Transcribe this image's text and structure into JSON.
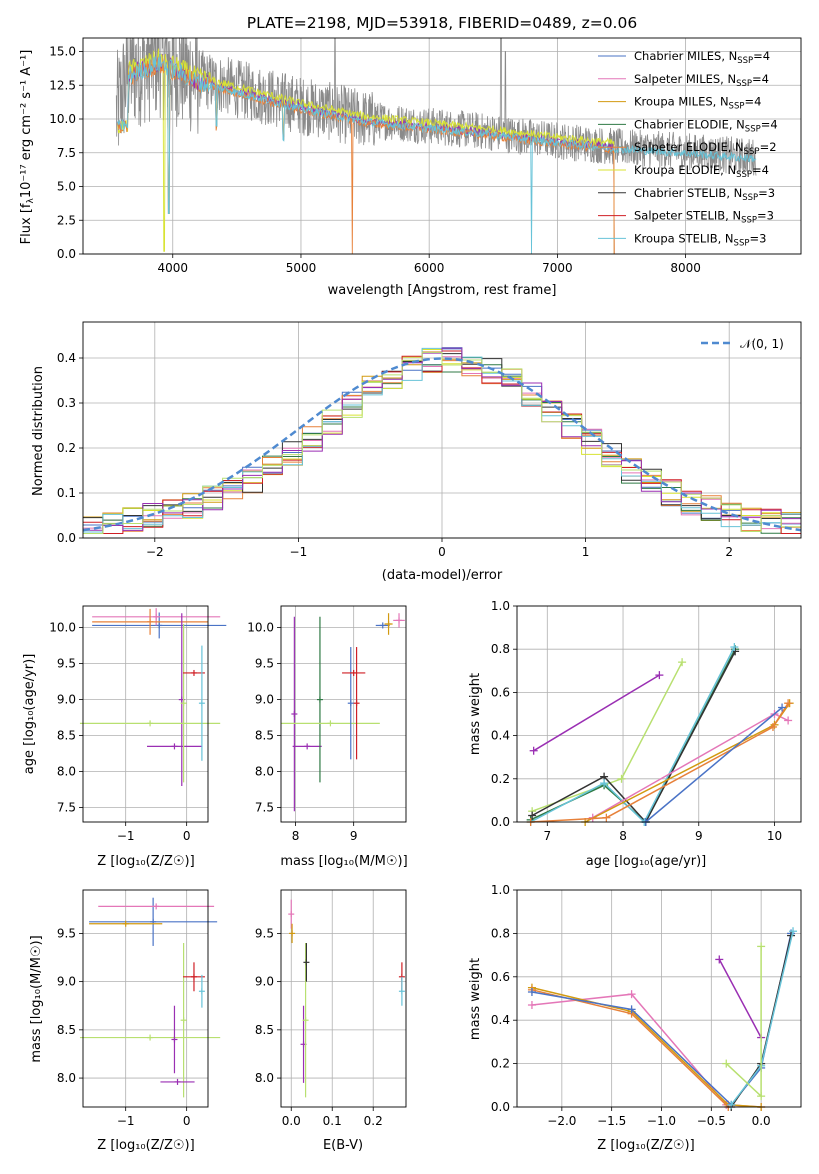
{
  "figure": {
    "title": "PLATE=2198, MJD=53918, FIBERID=0489, z=0.06"
  },
  "colors": {
    "chab_miles": "#4a73c6",
    "salp_miles": "#e477b8",
    "krou_miles": "#d29a10",
    "chab_elodie": "#2f7a45",
    "salp_elodie": "#e7813a",
    "krou_elodie": "#d8e332",
    "chab_stelib": "#333333",
    "salp_stelib": "#cf1f25",
    "krou_stelib": "#67c3d8",
    "purple": "#9a2fb3",
    "lime": "#b8e070",
    "normal_line": "#4f8ad0",
    "grid": "#b0b0b0",
    "data_grey": "#8a8a8a"
  },
  "panels": {
    "spectrum": {
      "xlabel": "wavelength [Angstrom, rest frame]",
      "ylabel_pre": "Flux [f",
      "ylabel_post": "10⁻¹⁷ erg cm⁻² s⁻¹ A⁻¹]",
      "legend": [
        {
          "name": "Chabrier MILES, N",
          "n": "=4",
          "color_key": "chab_miles"
        },
        {
          "name": "Salpeter MILES, N",
          "n": "=4",
          "color_key": "salp_miles"
        },
        {
          "name": "Kroupa MILES, N",
          "n": "=4",
          "color_key": "krou_miles"
        },
        {
          "name": "Chabrier ELODIE, N",
          "n": "=4",
          "color_key": "chab_elodie"
        },
        {
          "name": "Salpeter ELODIE, N",
          "n": "=2",
          "color_key": "salp_elodie"
        },
        {
          "name": "Kroupa ELODIE, N",
          "n": "=4",
          "color_key": "krou_elodie"
        },
        {
          "name": "Chabrier STELIB, N",
          "n": "=3",
          "color_key": "chab_stelib"
        },
        {
          "name": "Salpeter STELIB, N",
          "n": "=3",
          "color_key": "salp_stelib"
        },
        {
          "name": "Kroupa STELIB, N",
          "n": "=3",
          "color_key": "krou_stelib"
        }
      ],
      "legend_sub": "SSP"
    },
    "residuals": {
      "xlabel": "(data-model)/error",
      "ylabel": "Normed distribution",
      "legend": "𝒩(0, 1)"
    },
    "age_vs_z": {
      "xlabel": "Z [log₁₀(Z/Z☉)]",
      "ylabel": "age  [log₁₀(age/yr)]"
    },
    "age_vs_mass": {
      "xlabel": "mass [log₁₀(M/M☉)]"
    },
    "weight_vs_age": {
      "xlabel": "age  [log₁₀(age/yr)]",
      "ylabel": "mass weight"
    },
    "mass_vs_z": {
      "xlabel": "Z [log₁₀(Z/Z☉)]",
      "ylabel": "mass [log₁₀(M/M☉)]"
    },
    "mass_vs_ebv": {
      "xlabel": "E(B-V)"
    },
    "weight_vs_z": {
      "xlabel": "Z [log₁₀(Z/Z☉)]",
      "ylabel": "mass weight"
    }
  },
  "chart_data": [
    {
      "type": "line",
      "title": "PLATE=2198, MJD=53918, FIBERID=0489, z=0.06",
      "xlabel": "wavelength [Angstrom, rest frame]",
      "xlim": [
        3300,
        8900
      ],
      "ylim": [
        0,
        16
      ],
      "xticks": [
        4000,
        5000,
        6000,
        7000,
        8000
      ],
      "yticks": [
        0.0,
        2.5,
        5.0,
        7.5,
        10.0,
        12.5,
        15.0
      ],
      "continuum": [
        [
          3550,
          10.0
        ],
        [
          3650,
          13.5
        ],
        [
          3900,
          14.5
        ],
        [
          4200,
          13.0
        ],
        [
          4600,
          12.0
        ],
        [
          5000,
          11.0
        ],
        [
          5500,
          10.0
        ],
        [
          6000,
          9.5
        ],
        [
          6500,
          9.0
        ],
        [
          7000,
          8.4
        ],
        [
          7500,
          7.9
        ],
        [
          8000,
          7.6
        ],
        [
          8500,
          7.2
        ]
      ],
      "legend_location": "upper right"
    },
    {
      "type": "line",
      "xlabel": "(data-model)/error",
      "ylabel": "Normed distribution",
      "xlim": [
        -2.5,
        2.5
      ],
      "ylim": [
        0,
        0.48
      ],
      "xticks": [
        -2,
        -1,
        0,
        1,
        2
      ],
      "yticks": [
        0.0,
        0.1,
        0.2,
        0.3,
        0.4
      ],
      "series": [
        {
          "name": "𝒩(0, 1)",
          "function": "normal",
          "mean": 0,
          "sigma": 1
        }
      ],
      "histogram_base": [
        0.026,
        0.031,
        0.04,
        0.048,
        0.058,
        0.071,
        0.087,
        0.107,
        0.13,
        0.158,
        0.188,
        0.222,
        0.258,
        0.295,
        0.33,
        0.359,
        0.38,
        0.393,
        0.396,
        0.389,
        0.373,
        0.348,
        0.317,
        0.283,
        0.248,
        0.212,
        0.18,
        0.15,
        0.123,
        0.1,
        0.081,
        0.066,
        0.053,
        0.044,
        0.036,
        0.03
      ],
      "legend_location": "upper right"
    },
    {
      "type": "scatter",
      "xlabel": "Z [log₁₀(Z/Z☉)]",
      "ylabel": "age  [log₁₀(age/yr)]",
      "xlim": [
        -1.7,
        0.35
      ],
      "ylim": [
        7.3,
        10.3
      ],
      "xticks": [
        -1,
        0
      ],
      "yticks": [
        7.5,
        8.0,
        8.5,
        9.0,
        9.5,
        10.0
      ],
      "points": [
        {
          "color_key": "chab_miles",
          "x": -0.45,
          "y": 10.03,
          "xerr": 1.1,
          "yerr": 0.18
        },
        {
          "color_key": "salp_miles",
          "x": -0.5,
          "y": 10.15,
          "xerr": 1.05,
          "yerr": 0.12
        },
        {
          "color_key": "salp_elodie",
          "x": -0.6,
          "y": 10.08,
          "xerr": 0.95,
          "yerr": 0.18
        },
        {
          "color_key": "purple",
          "x": -0.08,
          "y": 9.0,
          "xerr": 0.0,
          "yerr": 1.2
        },
        {
          "color_key": "purple",
          "x": -0.2,
          "y": 8.35,
          "xerr": 0.45,
          "yerr": 0.0
        },
        {
          "color_key": "lime",
          "x": -0.6,
          "y": 8.67,
          "xerr": 1.15,
          "yerr": 0.0
        },
        {
          "color_key": "lime",
          "x": -0.05,
          "y": 8.95,
          "xerr": 0.0,
          "yerr": 1.1
        },
        {
          "color_key": "salp_stelib",
          "x": 0.12,
          "y": 9.37,
          "xerr": 0.18,
          "yerr": 0.0
        },
        {
          "color_key": "krou_stelib",
          "x": 0.25,
          "y": 8.95,
          "xerr": 0.0,
          "yerr": 0.8
        }
      ]
    },
    {
      "type": "scatter",
      "xlabel": "mass [log₁₀(M/M☉)]",
      "xlim": [
        7.75,
        9.9
      ],
      "ylim": [
        7.3,
        10.3
      ],
      "xticks": [
        8,
        9
      ],
      "yticks": [
        7.5,
        8.0,
        8.5,
        9.0,
        9.5,
        10.0
      ],
      "points": [
        {
          "color_key": "chab_miles",
          "x": 9.5,
          "y": 10.03,
          "xerr": 0.12,
          "yerr": 0.0
        },
        {
          "color_key": "salp_miles",
          "x": 9.78,
          "y": 10.1,
          "xerr": 0.1,
          "yerr": 0.1
        },
        {
          "color_key": "krou_miles",
          "x": 9.6,
          "y": 10.05,
          "xerr": 0.07,
          "yerr": 0.15
        },
        {
          "color_key": "purple",
          "x": 7.98,
          "y": 8.8,
          "xerr": 0.0,
          "yerr": 1.35
        },
        {
          "color_key": "purple",
          "x": 8.2,
          "y": 8.35,
          "xerr": 0.25,
          "yerr": 0.0
        },
        {
          "color_key": "chab_elodie",
          "x": 8.42,
          "y": 9.0,
          "xerr": 0.0,
          "yerr": 1.15
        },
        {
          "color_key": "lime",
          "x": 8.6,
          "y": 8.67,
          "xerr": 0.85,
          "yerr": 0.0
        },
        {
          "color_key": "chab_miles",
          "x": 8.95,
          "y": 8.95,
          "xerr": 0.0,
          "yerr": 0.78
        },
        {
          "color_key": "salp_stelib",
          "x": 9.0,
          "y": 9.37,
          "xerr": 0.2,
          "yerr": 0.0
        },
        {
          "color_key": "salp_stelib",
          "x": 9.05,
          "y": 8.95,
          "xerr": 0.0,
          "yerr": 0.78
        }
      ]
    },
    {
      "type": "line",
      "xlabel": "age  [log₁₀(age/yr)]",
      "ylabel": "mass weight",
      "xlim": [
        6.6,
        10.35
      ],
      "ylim": [
        0,
        1.0
      ],
      "xticks": [
        7,
        8,
        9,
        10
      ],
      "yticks": [
        0.0,
        0.2,
        0.4,
        0.6,
        0.8,
        1.0
      ],
      "series": [
        {
          "color_key": "purple",
          "points": [
            [
              6.82,
              0.33
            ],
            [
              8.48,
              0.68
            ]
          ]
        },
        {
          "color_key": "lime",
          "points": [
            [
              6.8,
              0.05
            ],
            [
              7.98,
              0.2
            ],
            [
              8.78,
              0.74
            ]
          ]
        },
        {
          "color_key": "chab_elodie",
          "points": [
            [
              6.78,
              0.01
            ],
            [
              7.75,
              0.17
            ],
            [
              8.3,
              0.0
            ],
            [
              9.48,
              0.8
            ]
          ]
        },
        {
          "color_key": "chab_stelib",
          "points": [
            [
              6.8,
              0.03
            ],
            [
              7.75,
              0.21
            ],
            [
              8.3,
              0.0
            ],
            [
              9.48,
              0.79
            ]
          ]
        },
        {
          "color_key": "krou_stelib",
          "points": [
            [
              6.78,
              0.0
            ],
            [
              7.75,
              0.18
            ],
            [
              8.28,
              0.0
            ],
            [
              9.47,
              0.81
            ]
          ]
        },
        {
          "color_key": "salp_miles",
          "points": [
            [
              7.6,
              0.02
            ],
            [
              10.0,
              0.5
            ],
            [
              10.18,
              0.47
            ]
          ]
        },
        {
          "color_key": "krou_miles",
          "points": [
            [
              7.5,
              0.0
            ],
            [
              10.0,
              0.45
            ],
            [
              10.2,
              0.55
            ]
          ]
        },
        {
          "color_key": "salp_elodie",
          "points": [
            [
              6.78,
              0.0
            ],
            [
              7.78,
              0.02
            ],
            [
              9.98,
              0.44
            ],
            [
              10.18,
              0.55
            ]
          ]
        },
        {
          "color_key": "chab_miles",
          "points": [
            [
              8.3,
              0.0
            ],
            [
              10.1,
              0.53
            ]
          ]
        }
      ]
    },
    {
      "type": "scatter",
      "xlabel": "Z [log₁₀(Z/Z☉)]",
      "ylabel": "mass [log₁₀(M/M☉)]",
      "xlim": [
        -1.7,
        0.35
      ],
      "ylim": [
        7.7,
        9.95
      ],
      "xticks": [
        -1,
        0
      ],
      "yticks": [
        8.0,
        8.5,
        9.0,
        9.5
      ],
      "points": [
        {
          "color_key": "chab_miles",
          "x": -0.55,
          "y": 9.62,
          "xerr": 1.05,
          "yerr": 0.25
        },
        {
          "color_key": "salp_miles",
          "x": -0.5,
          "y": 9.78,
          "xerr": 0.95,
          "yerr": 0.0
        },
        {
          "color_key": "krou_miles",
          "x": -1.0,
          "y": 9.6,
          "xerr": 0.6,
          "yerr": 0.0
        },
        {
          "color_key": "lime",
          "x": -0.6,
          "y": 8.42,
          "xerr": 1.15,
          "yerr": 0.0
        },
        {
          "color_key": "lime",
          "x": -0.05,
          "y": 8.6,
          "xerr": 0.0,
          "yerr": 0.8
        },
        {
          "color_key": "purple",
          "x": -0.2,
          "y": 8.4,
          "xerr": 0.0,
          "yerr": 0.35
        },
        {
          "color_key": "purple",
          "x": -0.15,
          "y": 7.96,
          "xerr": 0.28,
          "yerr": 0.0
        },
        {
          "color_key": "salp_stelib",
          "x": 0.12,
          "y": 9.05,
          "xerr": 0.18,
          "yerr": 0.15
        },
        {
          "color_key": "krou_stelib",
          "x": 0.25,
          "y": 8.9,
          "xerr": 0.0,
          "yerr": 0.17
        }
      ]
    },
    {
      "type": "scatter",
      "xlabel": "E(B-V)",
      "xlim": [
        -0.025,
        0.28
      ],
      "ylim": [
        7.7,
        9.95
      ],
      "xticks": [
        0.0,
        0.1,
        0.2
      ],
      "yticks": [
        8.0,
        8.5,
        9.0,
        9.5
      ],
      "points": [
        {
          "color_key": "salp_miles",
          "x": 0.0,
          "y": 9.7,
          "xerr": 0.0,
          "yerr": 0.15
        },
        {
          "color_key": "krou_miles",
          "x": 0.002,
          "y": 9.5,
          "xerr": 0.0,
          "yerr": 0.1
        },
        {
          "color_key": "purple",
          "x": 0.03,
          "y": 8.35,
          "xerr": 0.0,
          "yerr": 0.4
        },
        {
          "color_key": "lime",
          "x": 0.035,
          "y": 8.6,
          "xerr": 0.0,
          "yerr": 0.8
        },
        {
          "color_key": "chab_stelib",
          "x": 0.037,
          "y": 9.2,
          "xerr": 0.0,
          "yerr": 0.2
        },
        {
          "color_key": "salp_stelib",
          "x": 0.27,
          "y": 9.05,
          "xerr": 0.0,
          "yerr": 0.15
        },
        {
          "color_key": "krou_stelib",
          "x": 0.27,
          "y": 8.9,
          "xerr": 0.0,
          "yerr": 0.15
        }
      ]
    },
    {
      "type": "line",
      "xlabel": "Z [log₁₀(Z/Z☉)]",
      "ylabel": "mass weight",
      "xlim": [
        -2.45,
        0.4
      ],
      "ylim": [
        0,
        1.0
      ],
      "xticks": [
        -2.0,
        -1.5,
        -1.0,
        -0.5,
        0.0
      ],
      "yticks": [
        0.0,
        0.2,
        0.4,
        0.6,
        0.8,
        1.0
      ],
      "series": [
        {
          "color_key": "salp_miles",
          "points": [
            [
              -2.3,
              0.47
            ],
            [
              -1.3,
              0.52
            ],
            [
              -0.35,
              0.01
            ],
            [
              0.0,
              0.0
            ]
          ]
        },
        {
          "color_key": "krou_miles",
          "points": [
            [
              -2.3,
              0.55
            ],
            [
              -1.3,
              0.44
            ],
            [
              -0.33,
              0.01
            ],
            [
              0.0,
              0.0
            ]
          ]
        },
        {
          "color_key": "salp_elodie",
          "points": [
            [
              -2.3,
              0.54
            ],
            [
              -1.3,
              0.43
            ],
            [
              -0.33,
              0.0
            ]
          ]
        },
        {
          "color_key": "chab_miles",
          "points": [
            [
              -2.3,
              0.53
            ],
            [
              -1.3,
              0.45
            ],
            [
              -0.3,
              0.01
            ],
            [
              0.0,
              0.18
            ],
            [
              0.3,
              0.8
            ]
          ]
        },
        {
          "color_key": "chab_stelib",
          "points": [
            [
              -0.3,
              0.0
            ],
            [
              0.0,
              0.2
            ],
            [
              0.3,
              0.79
            ]
          ]
        },
        {
          "color_key": "krou_stelib",
          "points": [
            [
              -0.3,
              0.01
            ],
            [
              0.0,
              0.19
            ],
            [
              0.32,
              0.81
            ]
          ]
        },
        {
          "color_key": "purple",
          "points": [
            [
              -0.42,
              0.68
            ],
            [
              0.0,
              0.32
            ]
          ]
        },
        {
          "color_key": "lime",
          "points": [
            [
              -0.35,
              0.2
            ],
            [
              0.0,
              0.05
            ],
            [
              0.0,
              0.74
            ]
          ]
        }
      ]
    }
  ]
}
